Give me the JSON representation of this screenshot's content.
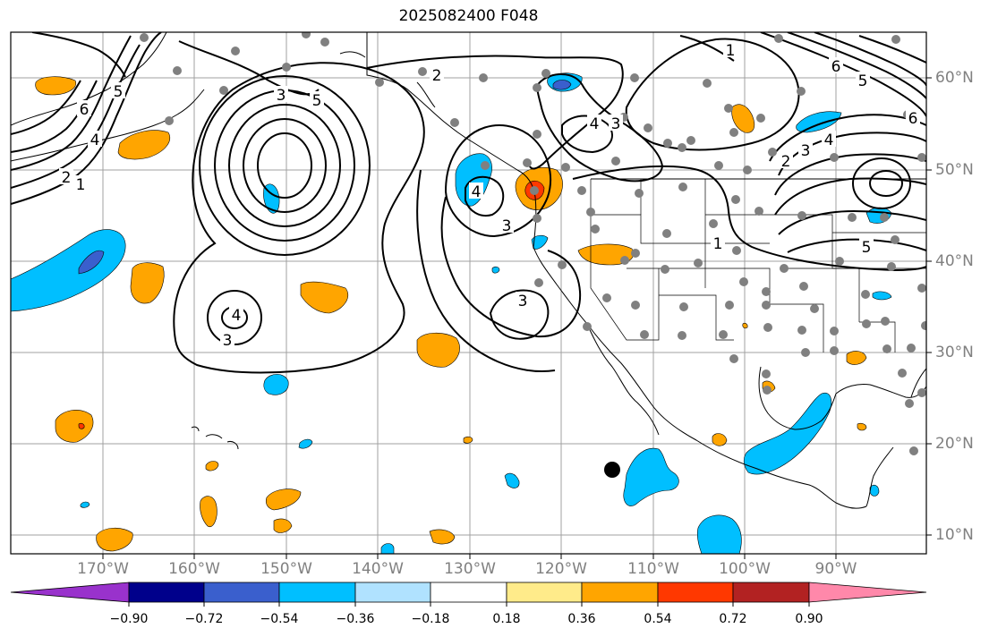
{
  "title": "2025082400 F048",
  "lat_labels": [
    "60°N",
    "50°N",
    "40°N",
    "30°N",
    "20°N",
    "10°N"
  ],
  "lon_labels": [
    "170°W",
    "160°W",
    "150°W",
    "140°W",
    "130°W",
    "120°W",
    "110°W",
    "100°W",
    "90°W"
  ],
  "contour_labels": [
    "1",
    "2",
    "3",
    "4",
    "5",
    "6"
  ],
  "colorbar": {
    "ticks": [
      "−0.90",
      "−0.72",
      "−0.54",
      "−0.36",
      "−0.18",
      "0.18",
      "0.36",
      "0.54",
      "0.72",
      "0.90"
    ],
    "colors": [
      "#9932cc",
      "#00008b",
      "#3a5fcd",
      "#00bfff",
      "#b0e2ff",
      "#ffffff",
      "#ffeb8a",
      "#ffa500",
      "#ff3800",
      "#b22222",
      "#ff88aa"
    ]
  },
  "colors": {
    "positive_light": "#ffeb8a",
    "positive_mid": "#ffa500",
    "positive_strong": "#ff3800",
    "negative_light": "#b0e2ff",
    "negative_mid": "#00bfff",
    "negative_strong": "#3a5fcd",
    "station_dot": "#808080",
    "grid": "#a0a0a0"
  }
}
